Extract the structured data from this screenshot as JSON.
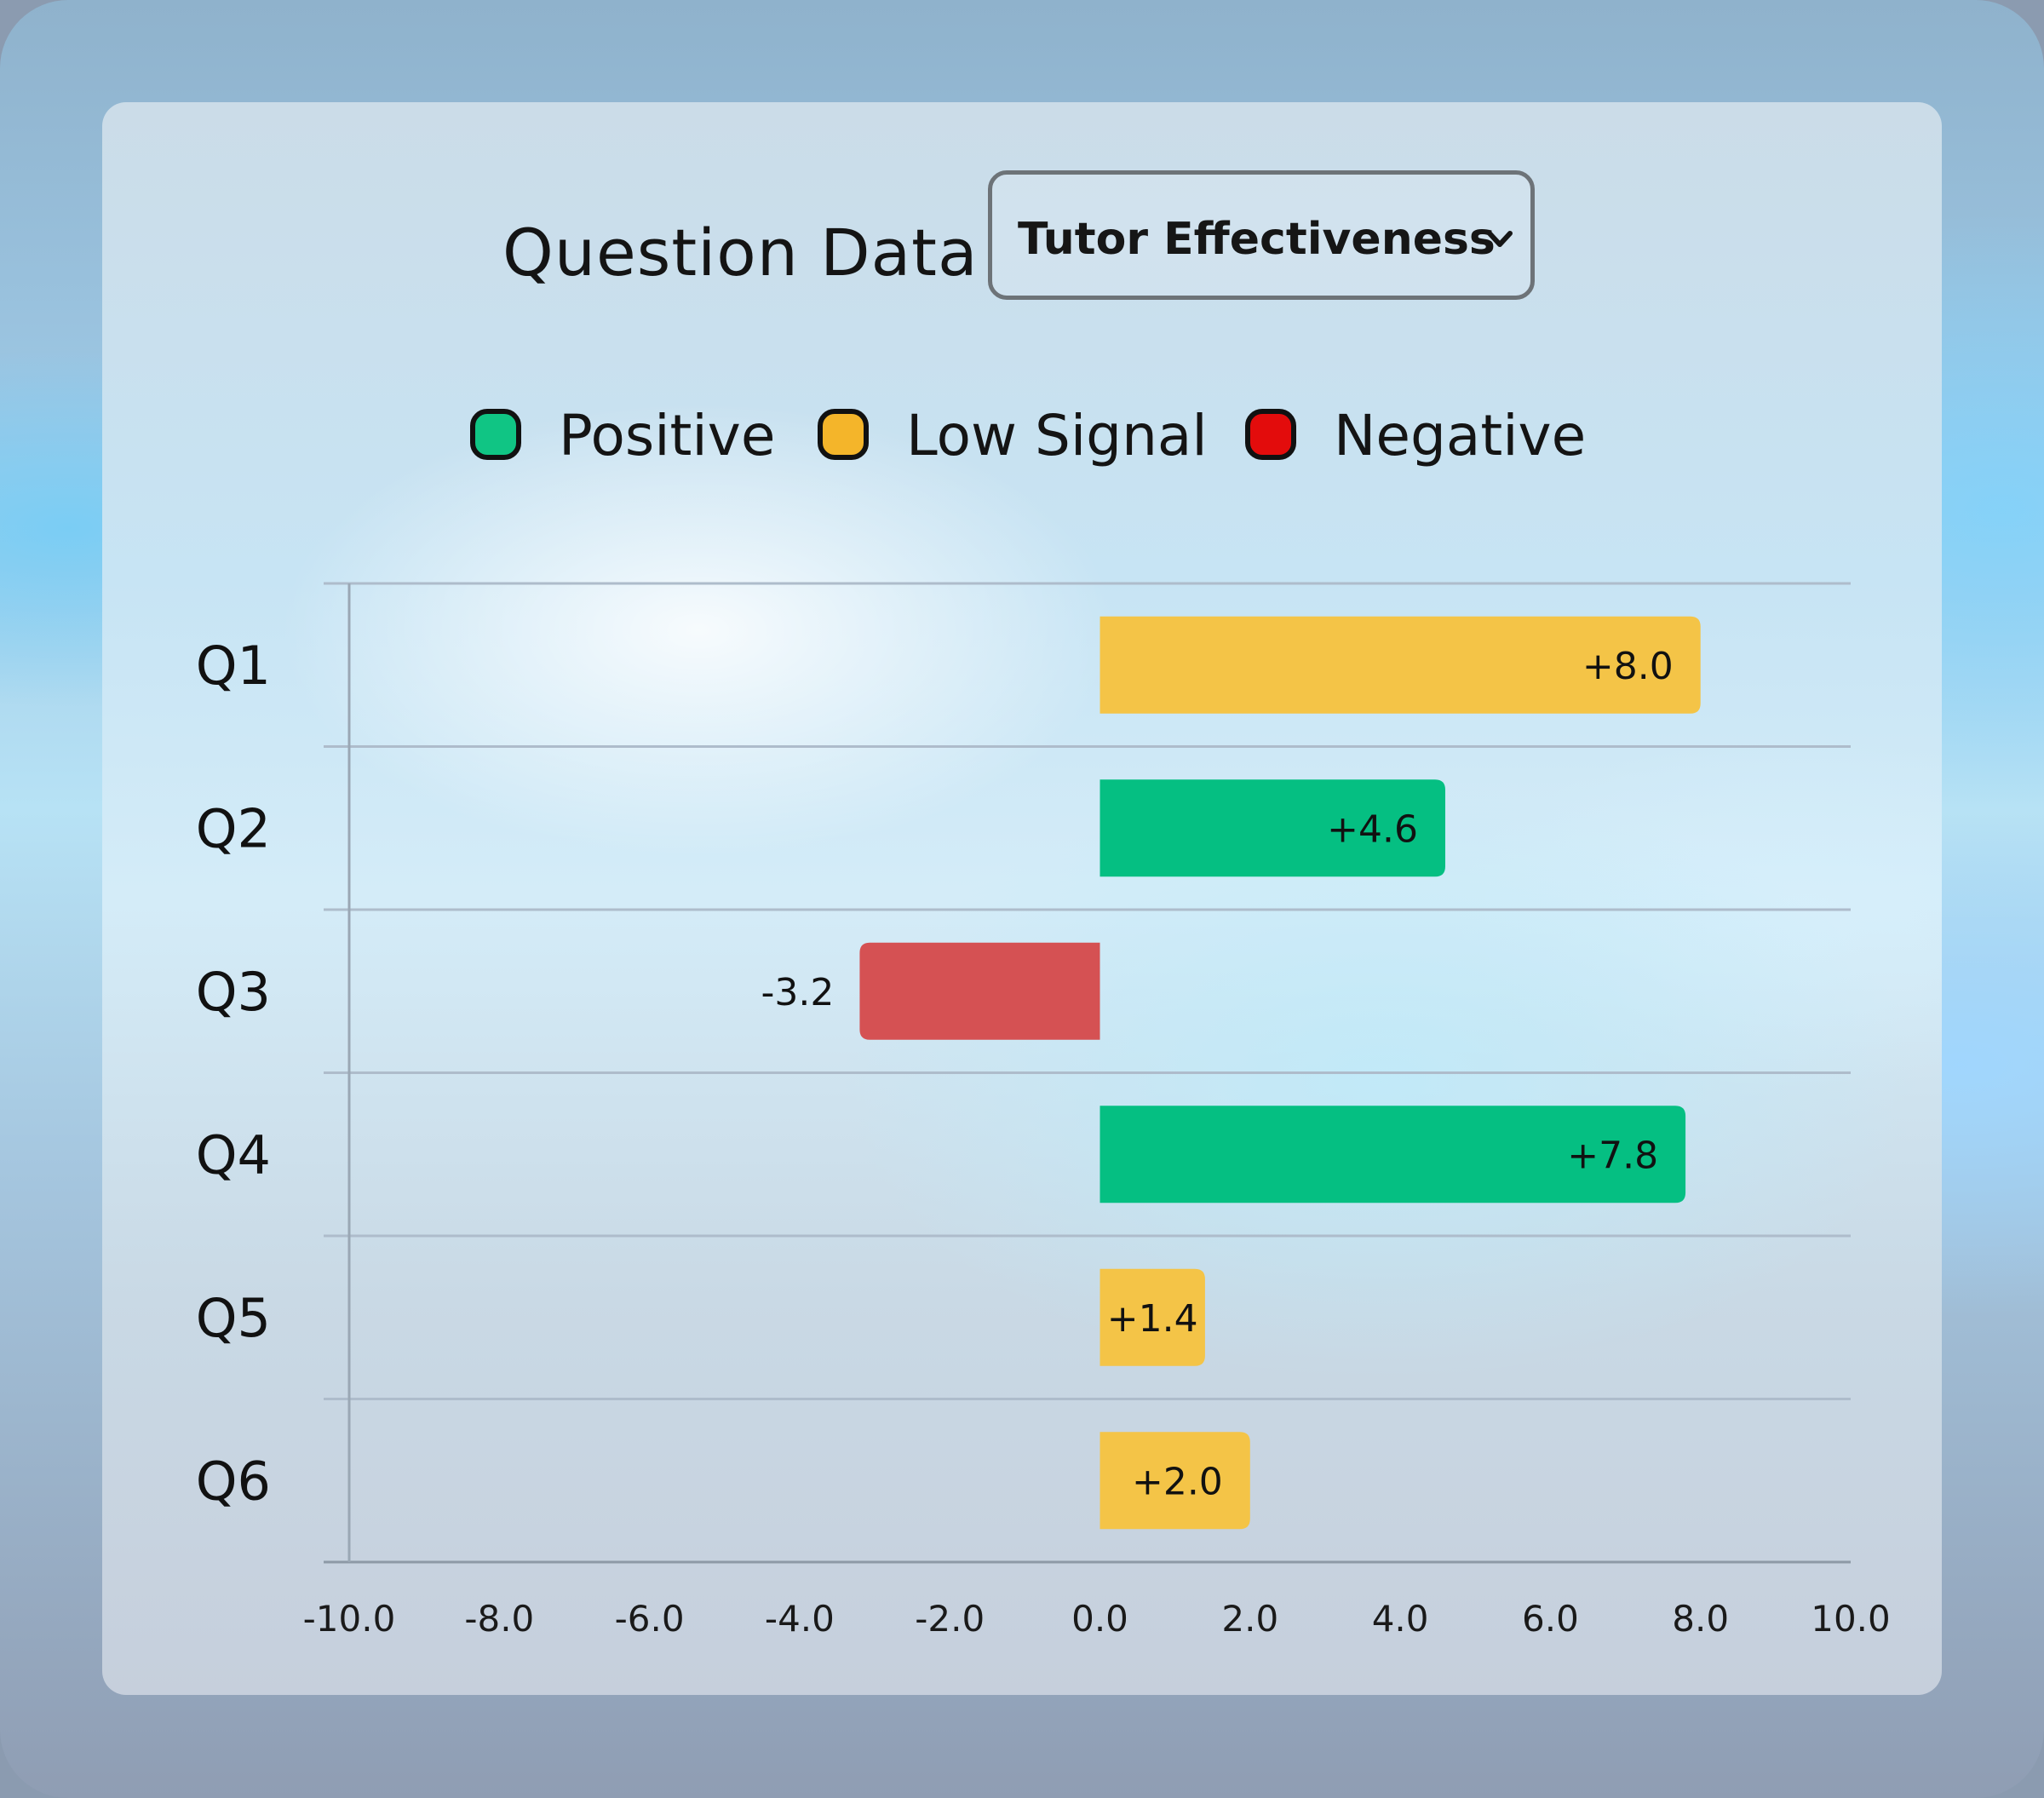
{
  "header": {
    "title": "Question Data",
    "dropdown_value": "Tutor Effectiveness"
  },
  "legend": [
    {
      "label": "Positive",
      "color": "#10c584"
    },
    {
      "label": "Low Signal",
      "color": "#f4b52a"
    },
    {
      "label": "Negative",
      "color": "#e30c0c"
    }
  ],
  "chart_data": {
    "type": "bar",
    "orientation": "horizontal",
    "categories": [
      "Q1",
      "Q2",
      "Q3",
      "Q4",
      "Q5",
      "Q6"
    ],
    "values": [
      8.0,
      4.6,
      -3.2,
      7.8,
      1.4,
      2.0
    ],
    "value_labels": [
      "+8.0",
      "+4.6",
      "-3.2",
      "+7.8",
      "+1.4",
      "+2.0"
    ],
    "bar_classes": [
      "Low Signal",
      "Positive",
      "Negative",
      "Positive",
      "Low Signal",
      "Low Signal"
    ],
    "bar_colors": [
      "#f4c447",
      "#05bf82",
      "#d55153",
      "#05bf82",
      "#f4c447",
      "#f4c447"
    ],
    "xlim": [
      -10,
      10
    ],
    "xticks": [
      "-10.0",
      "-8.0",
      "-6.0",
      "-4.0",
      "-2.0",
      "0.0",
      "2.0",
      "4.0",
      "6.0",
      "8.0",
      "10.0"
    ],
    "grid": true
  }
}
